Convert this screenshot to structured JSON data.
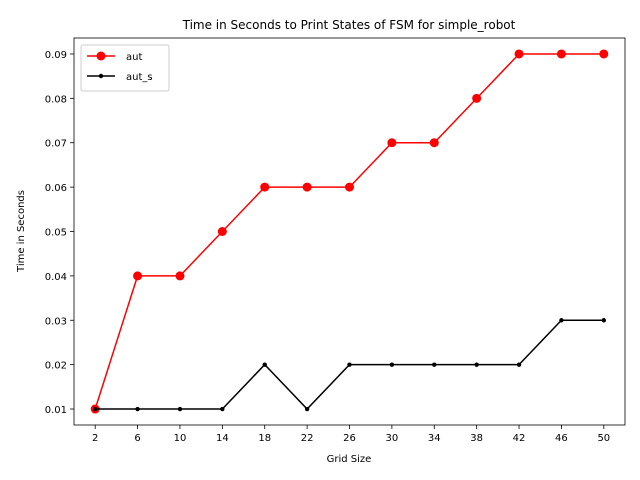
{
  "chart_data": {
    "type": "line",
    "title": "Time in Seconds to Print States of FSM for simple_robot",
    "xlabel": "Grid Size",
    "ylabel": "Time in Seconds",
    "x": [
      2,
      6,
      10,
      14,
      18,
      22,
      26,
      30,
      34,
      38,
      42,
      46,
      50
    ],
    "xlim": [
      0,
      52
    ],
    "ylim": [
      0.0064,
      0.0936
    ],
    "yticks": [
      0.01,
      0.02,
      0.03,
      0.04,
      0.05,
      0.06,
      0.07,
      0.08,
      0.09
    ],
    "legend_position": "top-left",
    "series": [
      {
        "name": "aut",
        "color": "#ff0000",
        "marker": "circle-large",
        "values": [
          0.01,
          0.04,
          0.04,
          0.05,
          0.06,
          0.06,
          0.06,
          0.07,
          0.07,
          0.08,
          0.09,
          0.09,
          0.09
        ]
      },
      {
        "name": "aut_s",
        "color": "#000000",
        "marker": "circle-small",
        "values": [
          0.01,
          0.01,
          0.01,
          0.01,
          0.02,
          0.01,
          0.02,
          0.02,
          0.02,
          0.02,
          0.02,
          0.03,
          0.03
        ]
      }
    ]
  }
}
